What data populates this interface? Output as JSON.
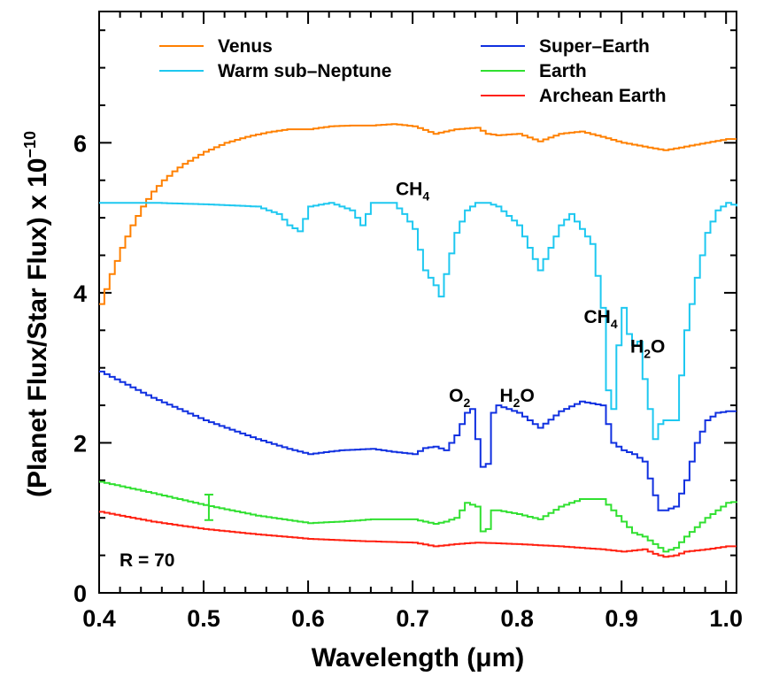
{
  "chart_data": {
    "type": "line",
    "title": "",
    "xlabel": "Wavelength (μm)",
    "ylabel": "(Planet Flux/Star Flux) x 10",
    "ylabel_exponent": "−10",
    "xlim": [
      0.4,
      1.01
    ],
    "ylim": [
      0,
      7.75
    ],
    "xticks": [
      0.4,
      0.5,
      0.6,
      0.7,
      0.8,
      0.9,
      1.0
    ],
    "xtick_labels": [
      "0.4",
      "0.5",
      "0.6",
      "0.7",
      "0.8",
      "0.9",
      "1.0"
    ],
    "yticks": [
      0,
      2,
      4,
      6
    ],
    "ytick_labels": [
      "0",
      "2",
      "4",
      "6"
    ],
    "grid": false,
    "step": true,
    "legend_position": "top",
    "resolution_label": "R = 70",
    "annotations": [
      {
        "base": "CH",
        "sub": "4",
        "x": 0.7,
        "y": 5.3
      },
      {
        "base": "CH",
        "sub": "4",
        "x": 0.88,
        "y": 3.6
      },
      {
        "base": "H",
        "sub": "2",
        "tail": "O",
        "x": 0.925,
        "y": 3.2
      },
      {
        "base": "O",
        "sub": "2",
        "x": 0.745,
        "y": 2.55
      },
      {
        "base": "H",
        "sub": "2",
        "tail": "O",
        "x": 0.8,
        "y": 2.55
      }
    ],
    "error_bar": {
      "series": "Earth",
      "x": 0.505,
      "y": 1.14,
      "yerr": 0.17
    },
    "series": [
      {
        "name": "Venus",
        "color": "#ff8000",
        "x": [
          0.4,
          0.41,
          0.42,
          0.43,
          0.44,
          0.45,
          0.46,
          0.47,
          0.48,
          0.49,
          0.5,
          0.52,
          0.54,
          0.56,
          0.58,
          0.6,
          0.62,
          0.64,
          0.66,
          0.68,
          0.7,
          0.72,
          0.74,
          0.76,
          0.77,
          0.78,
          0.8,
          0.82,
          0.84,
          0.86,
          0.88,
          0.9,
          0.92,
          0.94,
          0.96,
          0.98,
          1.0,
          1.01
        ],
        "y": [
          3.85,
          4.25,
          4.6,
          4.9,
          5.15,
          5.35,
          5.5,
          5.62,
          5.72,
          5.8,
          5.88,
          6.0,
          6.08,
          6.14,
          6.18,
          6.18,
          6.22,
          6.23,
          6.23,
          6.25,
          6.22,
          6.12,
          6.18,
          6.2,
          6.12,
          6.1,
          6.12,
          6.02,
          6.12,
          6.15,
          6.08,
          6.0,
          5.95,
          5.9,
          5.95,
          6.0,
          6.05,
          6.05
        ]
      },
      {
        "name": "Warm sub–Neptune",
        "color": "#1ec8f0",
        "x": [
          0.4,
          0.45,
          0.5,
          0.55,
          0.57,
          0.58,
          0.59,
          0.6,
          0.62,
          0.64,
          0.65,
          0.66,
          0.68,
          0.69,
          0.7,
          0.71,
          0.72,
          0.725,
          0.73,
          0.74,
          0.75,
          0.76,
          0.77,
          0.78,
          0.8,
          0.81,
          0.82,
          0.83,
          0.84,
          0.85,
          0.86,
          0.87,
          0.88,
          0.885,
          0.89,
          0.895,
          0.9,
          0.905,
          0.91,
          0.915,
          0.92,
          0.925,
          0.93,
          0.935,
          0.94,
          0.95,
          0.96,
          0.97,
          0.98,
          0.99,
          1.0,
          1.01
        ],
        "y": [
          5.2,
          5.2,
          5.18,
          5.15,
          5.05,
          4.9,
          4.82,
          5.15,
          5.2,
          5.1,
          4.9,
          5.2,
          5.2,
          5.05,
          4.85,
          4.3,
          4.1,
          3.95,
          4.25,
          4.8,
          5.1,
          5.2,
          5.2,
          5.15,
          4.9,
          4.6,
          4.3,
          4.6,
          4.9,
          5.05,
          4.85,
          4.65,
          3.8,
          2.7,
          2.45,
          3.3,
          3.8,
          3.45,
          3.3,
          3.35,
          2.85,
          2.45,
          2.05,
          2.25,
          2.3,
          2.3,
          3.5,
          4.2,
          4.8,
          5.1,
          5.2,
          5.15
        ]
      },
      {
        "name": "Super–Earth",
        "color": "#1030e0",
        "x": [
          0.4,
          0.45,
          0.5,
          0.55,
          0.58,
          0.6,
          0.63,
          0.66,
          0.68,
          0.7,
          0.71,
          0.72,
          0.73,
          0.74,
          0.75,
          0.755,
          0.76,
          0.765,
          0.77,
          0.775,
          0.78,
          0.8,
          0.82,
          0.84,
          0.86,
          0.88,
          0.89,
          0.9,
          0.91,
          0.92,
          0.93,
          0.935,
          0.94,
          0.95,
          0.96,
          0.97,
          0.98,
          0.99,
          1.0,
          1.01
        ],
        "y": [
          2.95,
          2.6,
          2.3,
          2.05,
          1.92,
          1.85,
          1.9,
          1.92,
          1.88,
          1.85,
          1.93,
          1.95,
          1.9,
          2.1,
          2.4,
          2.45,
          2.05,
          1.68,
          1.72,
          2.4,
          2.5,
          2.4,
          2.2,
          2.42,
          2.55,
          2.5,
          2.0,
          1.9,
          1.85,
          1.75,
          1.3,
          1.1,
          1.1,
          1.15,
          1.5,
          2.0,
          2.3,
          2.4,
          2.42,
          2.42
        ]
      },
      {
        "name": "Earth",
        "color": "#30e030",
        "x": [
          0.4,
          0.45,
          0.5,
          0.55,
          0.58,
          0.6,
          0.63,
          0.66,
          0.7,
          0.72,
          0.73,
          0.74,
          0.75,
          0.76,
          0.765,
          0.77,
          0.775,
          0.78,
          0.8,
          0.82,
          0.84,
          0.86,
          0.88,
          0.9,
          0.91,
          0.92,
          0.93,
          0.94,
          0.95,
          0.96,
          0.98,
          1.0,
          1.01
        ],
        "y": [
          1.48,
          1.33,
          1.17,
          1.03,
          0.97,
          0.93,
          0.95,
          0.98,
          0.98,
          0.92,
          0.95,
          1.0,
          1.2,
          1.15,
          0.82,
          0.85,
          1.1,
          1.1,
          1.05,
          0.98,
          1.15,
          1.25,
          1.25,
          0.95,
          0.8,
          0.75,
          0.65,
          0.55,
          0.6,
          0.75,
          1.0,
          1.2,
          1.22
        ]
      },
      {
        "name": "Archean Earth",
        "color": "#ff2010",
        "x": [
          0.4,
          0.45,
          0.5,
          0.55,
          0.6,
          0.65,
          0.7,
          0.72,
          0.74,
          0.76,
          0.8,
          0.84,
          0.88,
          0.9,
          0.92,
          0.93,
          0.94,
          0.95,
          0.96,
          0.98,
          1.0,
          1.01
        ],
        "y": [
          1.08,
          0.95,
          0.85,
          0.78,
          0.72,
          0.69,
          0.67,
          0.62,
          0.65,
          0.67,
          0.65,
          0.62,
          0.58,
          0.55,
          0.58,
          0.52,
          0.48,
          0.5,
          0.55,
          0.58,
          0.62,
          0.62
        ]
      }
    ]
  }
}
